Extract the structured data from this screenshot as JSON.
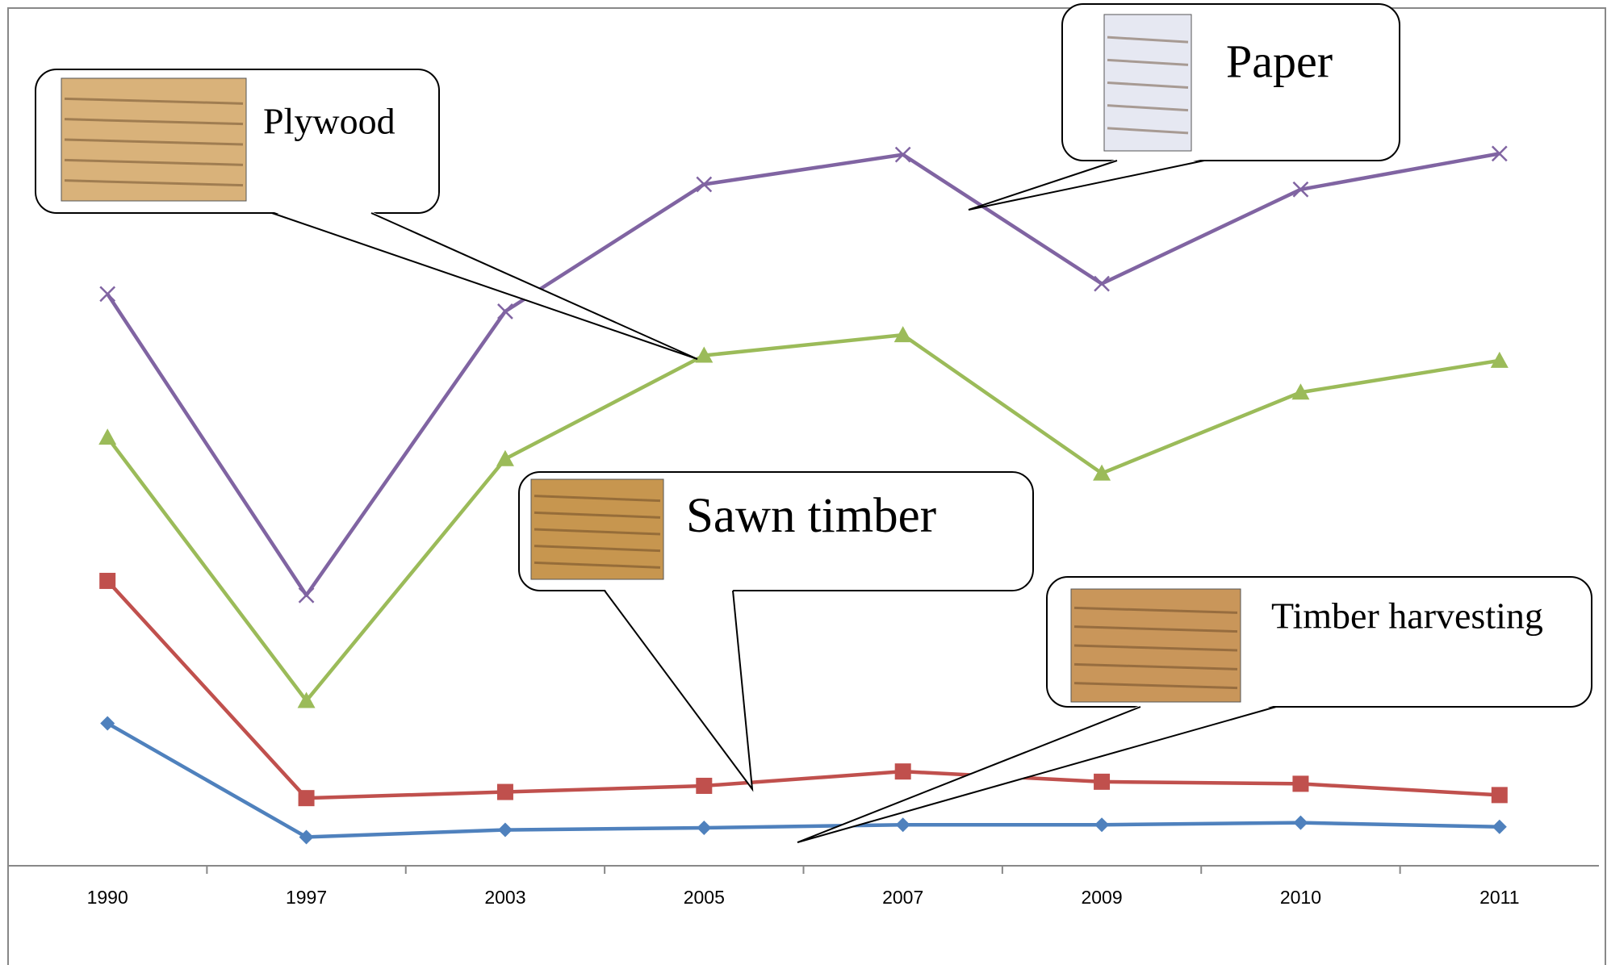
{
  "chart_data": {
    "type": "line",
    "categories": [
      "1990",
      "1997",
      "2003",
      "2005",
      "2007",
      "2009",
      "2010",
      "2011"
    ],
    "series": [
      {
        "name": "Timber harvesting",
        "color": "#4f81bd",
        "marker": "diamond",
        "values": [
          13.9,
          2.8,
          3.5,
          3.7,
          4.0,
          4.0,
          4.2,
          3.8
        ]
      },
      {
        "name": "Sawn timber",
        "color": "#c0504d",
        "marker": "square",
        "values": [
          27.8,
          6.6,
          7.2,
          7.8,
          9.2,
          8.2,
          8.0,
          6.9
        ]
      },
      {
        "name": "Plywood",
        "color": "#9bbb59",
        "marker": "triangle",
        "values": [
          41.8,
          16.1,
          39.7,
          49.8,
          51.8,
          38.3,
          46.2,
          49.3
        ]
      },
      {
        "name": "Paper",
        "color": "#8064a2",
        "marker": "x",
        "values": [
          55.8,
          26.4,
          54.1,
          66.5,
          69.4,
          56.8,
          66.0,
          69.5
        ]
      }
    ]
  }
}
